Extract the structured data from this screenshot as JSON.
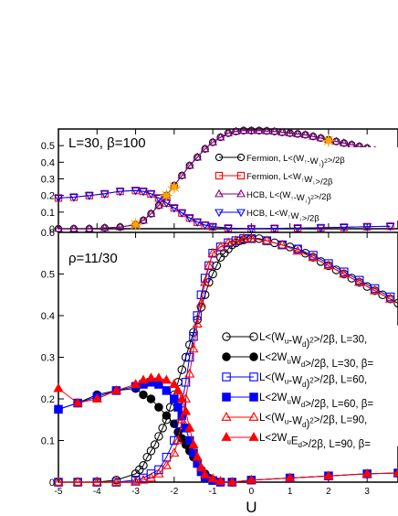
{
  "chart_data": [
    {
      "type": "line",
      "panel": "top",
      "annotation": "L=30, β=100",
      "xlim": [
        -5,
        3.8
      ],
      "ylim": [
        0,
        0.6
      ],
      "yticks": [
        "0",
        "0.1",
        "0.2",
        "0.3",
        "0.4",
        "0.5"
      ],
      "ytick_values": [
        0,
        0.1,
        0.2,
        0.3,
        0.4,
        0.5
      ],
      "grid": false,
      "legend_position": "top-right",
      "series": [
        {
          "name": "Fermion, L<(W↑-W↓)²>/2β",
          "color": "#000000",
          "marker": "circle",
          "filled": false,
          "x": [
            -5,
            -4.6,
            -4.2,
            -3.8,
            -3.4,
            -3.0,
            -2.8,
            -2.6,
            -2.4,
            -2.2,
            -2.0,
            -1.8,
            -1.6,
            -1.4,
            -1.2,
            -1.0,
            -0.8,
            -0.6,
            -0.4,
            -0.2,
            0.0,
            0.2,
            0.4,
            0.6,
            0.8,
            1.0,
            1.2,
            1.4,
            1.6,
            1.8,
            2.0,
            2.2,
            2.4,
            2.6,
            2.8,
            3.0,
            3.2,
            3.4,
            3.6,
            3.8
          ],
          "y": [
            0.0,
            0.0,
            0.0,
            0.005,
            0.01,
            0.025,
            0.05,
            0.09,
            0.14,
            0.2,
            0.26,
            0.32,
            0.38,
            0.43,
            0.48,
            0.52,
            0.55,
            0.575,
            0.585,
            0.59,
            0.59,
            0.59,
            0.588,
            0.585,
            0.58,
            0.575,
            0.57,
            0.565,
            0.555,
            0.545,
            0.535,
            0.525,
            0.515,
            0.505,
            0.495,
            0.485,
            0.47,
            0.46,
            0.45,
            0.44
          ]
        },
        {
          "name": "Fermion, L<W↑W↓>/2β",
          "color": "#ff0000",
          "marker": "square",
          "filled": false,
          "x": [
            -5,
            -4.6,
            -4.2,
            -3.8,
            -3.4,
            -3.0,
            -2.8,
            -2.6,
            -2.4,
            -2.2,
            -2.0,
            -1.8,
            -1.6,
            -1.4,
            -1.2,
            -1.0,
            -0.6,
            0.0,
            0.6,
            1.2,
            1.8,
            2.4,
            3.0,
            3.6
          ],
          "y": [
            0.185,
            0.19,
            0.2,
            0.21,
            0.225,
            0.23,
            0.225,
            0.21,
            0.185,
            0.155,
            0.125,
            0.095,
            0.065,
            0.04,
            0.022,
            0.012,
            0.004,
            0.0,
            0.002,
            0.004,
            0.006,
            0.009,
            0.012,
            0.015
          ]
        },
        {
          "name": "HCB, L<(W↑-W↓)²>/2β",
          "color": "#800080",
          "marker": "triangle-up",
          "filled": false,
          "x": [
            -5,
            -4.6,
            -4.2,
            -3.8,
            -3.4,
            -3.0,
            -2.8,
            -2.6,
            -2.4,
            -2.2,
            -2.0,
            -1.8,
            -1.6,
            -1.4,
            -1.2,
            -1.0,
            -0.8,
            -0.6,
            -0.4,
            -0.2,
            0.0,
            0.2,
            0.4,
            0.6,
            0.8,
            1.0,
            1.2,
            1.4,
            1.6,
            1.8,
            2.0,
            2.2,
            2.4,
            2.6,
            2.8,
            3.0,
            3.2,
            3.4,
            3.6,
            3.8
          ],
          "y": [
            0.0,
            0.0,
            0.0,
            0.005,
            0.01,
            0.025,
            0.05,
            0.09,
            0.14,
            0.2,
            0.26,
            0.32,
            0.38,
            0.43,
            0.48,
            0.52,
            0.55,
            0.575,
            0.585,
            0.59,
            0.59,
            0.59,
            0.588,
            0.585,
            0.58,
            0.575,
            0.57,
            0.565,
            0.555,
            0.545,
            0.535,
            0.525,
            0.515,
            0.505,
            0.495,
            0.485,
            0.47,
            0.46,
            0.45,
            0.44
          ]
        },
        {
          "name": "HCB, L<W↑W↓>/2β",
          "color": "#0000ff",
          "marker": "triangle-down",
          "filled": false,
          "x": [
            -5,
            -4.6,
            -4.2,
            -3.8,
            -3.4,
            -3.0,
            -2.8,
            -2.6,
            -2.4,
            -2.2,
            -2.0,
            -1.8,
            -1.6,
            -1.4,
            -1.2,
            -1.0,
            -0.6,
            0.0,
            0.6,
            1.2,
            1.8,
            2.4,
            3.0,
            3.6
          ],
          "y": [
            0.185,
            0.19,
            0.2,
            0.21,
            0.225,
            0.23,
            0.225,
            0.21,
            0.185,
            0.155,
            0.125,
            0.095,
            0.065,
            0.04,
            0.022,
            0.012,
            0.004,
            0.0,
            0.002,
            0.004,
            0.006,
            0.009,
            0.012,
            0.015
          ]
        }
      ],
      "highlight_points": {
        "color": "#ffa500",
        "x": [
          -3.0,
          -2.2,
          -2.0,
          2.0
        ],
        "y": [
          0.025,
          0.2,
          0.25,
          0.53
        ]
      }
    },
    {
      "type": "line",
      "panel": "bottom",
      "annotation": "ρ=11/30",
      "xlabel": "U",
      "xlim": [
        -5,
        3.8
      ],
      "ylim": [
        0,
        0.6
      ],
      "xticks": [
        "-5",
        "-4",
        "-3",
        "-2",
        "-1",
        "0",
        "1",
        "2",
        "3"
      ],
      "xtick_values": [
        -5,
        -4,
        -3,
        -2,
        -1,
        0,
        1,
        2,
        3
      ],
      "yticks": [
        "0",
        "0.1",
        "0.2",
        "0.3",
        "0.4",
        "0.5",
        "0.6"
      ],
      "ytick_values": [
        0,
        0.1,
        0.2,
        0.3,
        0.4,
        0.5,
        0.6
      ],
      "grid": false,
      "legend_position": "right",
      "series": [
        {
          "name": "L<(Wu-Wd)²>/2β, L=30,",
          "color": "#000000",
          "marker": "circle",
          "filled": false,
          "x": [
            -5,
            -4.5,
            -4,
            -3.5,
            -3.0,
            -2.9,
            -2.8,
            -2.7,
            -2.6,
            -2.5,
            -2.4,
            -2.3,
            -2.2,
            -2.1,
            -2.0,
            -1.9,
            -1.8,
            -1.7,
            -1.6,
            -1.5,
            -1.4,
            -1.3,
            -1.2,
            -1.1,
            -1.0,
            -0.9,
            -0.8,
            -0.7,
            -0.6,
            -0.5,
            -0.4,
            -0.3,
            -0.2,
            -0.1,
            0.0,
            0.2,
            0.4,
            0.6,
            0.8,
            1.0,
            1.2,
            1.4,
            1.6,
            1.8,
            2.0,
            2.2,
            2.4,
            2.6,
            2.8,
            3.0,
            3.2,
            3.4,
            3.6,
            3.8
          ],
          "y": [
            0.0,
            0.0,
            0.0,
            0.005,
            0.02,
            0.03,
            0.04,
            0.06,
            0.075,
            0.09,
            0.11,
            0.13,
            0.15,
            0.18,
            0.21,
            0.24,
            0.27,
            0.3,
            0.33,
            0.36,
            0.39,
            0.42,
            0.45,
            0.48,
            0.5,
            0.52,
            0.54,
            0.55,
            0.56,
            0.57,
            0.575,
            0.58,
            0.582,
            0.585,
            0.585,
            0.585,
            0.58,
            0.575,
            0.57,
            0.565,
            0.56,
            0.55,
            0.54,
            0.53,
            0.52,
            0.51,
            0.5,
            0.49,
            0.48,
            0.47,
            0.46,
            0.45,
            0.44,
            0.43
          ]
        },
        {
          "name": "L<2WuWd>/2β, L=30, β=",
          "color": "#000000",
          "marker": "circle",
          "filled": true,
          "x": [
            -5,
            -4.5,
            -4,
            -3.5,
            -3.0,
            -2.8,
            -2.6,
            -2.4,
            -2.2,
            -2.0,
            -1.9,
            -1.8,
            -1.7,
            -1.6,
            -1.5,
            -1.4,
            -1.3,
            -1.2,
            -1.1,
            -1.0,
            -0.8,
            -0.5,
            0.0,
            1.0,
            2.0,
            3.0,
            3.8
          ],
          "y": [
            0.175,
            0.19,
            0.21,
            0.22,
            0.225,
            0.21,
            0.2,
            0.18,
            0.16,
            0.14,
            0.12,
            0.105,
            0.09,
            0.075,
            0.06,
            0.045,
            0.03,
            0.02,
            0.01,
            0.005,
            0.0,
            0.0,
            0.005,
            0.01,
            0.015,
            0.02,
            0.022
          ]
        },
        {
          "name": "L<(Wu-Wd)²>/2β, L=60,",
          "color": "#0000ff",
          "marker": "square",
          "filled": false,
          "x": [
            -5,
            -4.5,
            -4,
            -3.5,
            -3.0,
            -2.8,
            -2.6,
            -2.4,
            -2.2,
            -2.0,
            -1.9,
            -1.8,
            -1.7,
            -1.6,
            -1.5,
            -1.4,
            -1.3,
            -1.2,
            -1.1,
            -1.0,
            -0.8,
            -0.6,
            -0.4,
            -0.2,
            0.0,
            0.4,
            0.8,
            1.2,
            1.6,
            2.0,
            2.4,
            2.8,
            3.2,
            3.6
          ],
          "y": [
            0.0,
            0.0,
            0.0,
            0.0,
            0.005,
            0.01,
            0.02,
            0.03,
            0.06,
            0.1,
            0.14,
            0.19,
            0.24,
            0.3,
            0.35,
            0.4,
            0.45,
            0.49,
            0.52,
            0.55,
            0.565,
            0.575,
            0.58,
            0.585,
            0.585,
            0.58,
            0.57,
            0.56,
            0.545,
            0.525,
            0.505,
            0.485,
            0.465,
            0.445
          ]
        },
        {
          "name": "L<2WuWd>/2β, L=60, β=",
          "color": "#0000ff",
          "marker": "square",
          "filled": true,
          "x": [
            -5,
            -4.5,
            -4,
            -3.5,
            -3.0,
            -2.8,
            -2.6,
            -2.4,
            -2.2,
            -2.0,
            -1.9,
            -1.8,
            -1.7,
            -1.6,
            -1.5,
            -1.4,
            -1.3,
            -1.2,
            -1.0,
            -0.8,
            -0.5,
            0.0,
            1.0,
            2.0,
            3.0,
            3.8
          ],
          "y": [
            0.175,
            0.19,
            0.205,
            0.22,
            0.23,
            0.235,
            0.24,
            0.235,
            0.22,
            0.2,
            0.18,
            0.16,
            0.13,
            0.1,
            0.07,
            0.045,
            0.025,
            0.012,
            0.004,
            0.0,
            0.0,
            0.005,
            0.01,
            0.015,
            0.02,
            0.022
          ]
        },
        {
          "name": "L<(Wu-Wd)²>/2β, L=90,",
          "color": "#ff0000",
          "marker": "triangle-up",
          "filled": false,
          "x": [
            -5,
            -4.5,
            -4,
            -3.5,
            -3.0,
            -2.8,
            -2.6,
            -2.4,
            -2.2,
            -2.0,
            -1.9,
            -1.8,
            -1.7,
            -1.6,
            -1.5,
            -1.4,
            -1.3,
            -1.2,
            -1.1,
            -1.0,
            -0.8,
            -0.6,
            -0.4,
            -0.2,
            0.0,
            0.4,
            0.8,
            1.2,
            1.6,
            2.0,
            2.4,
            2.8,
            3.2,
            3.6
          ],
          "y": [
            0.0,
            0.0,
            0.0,
            0.0,
            0.0,
            0.005,
            0.01,
            0.02,
            0.04,
            0.07,
            0.1,
            0.15,
            0.2,
            0.26,
            0.32,
            0.38,
            0.43,
            0.48,
            0.52,
            0.55,
            0.565,
            0.575,
            0.58,
            0.585,
            0.585,
            0.58,
            0.57,
            0.555,
            0.54,
            0.52,
            0.5,
            0.48,
            0.46,
            0.44
          ]
        },
        {
          "name": "L<2WuEd>/2β, L=90, β=",
          "color": "#ff0000",
          "marker": "triangle-up",
          "filled": true,
          "x": [
            -5,
            -4.5,
            -4,
            -3.5,
            -3.0,
            -2.8,
            -2.6,
            -2.4,
            -2.2,
            -2.0,
            -1.9,
            -1.8,
            -1.7,
            -1.6,
            -1.5,
            -1.4,
            -1.3,
            -1.2,
            -1.0,
            -0.8,
            -0.5,
            0.0,
            1.0,
            2.0,
            3.0,
            3.8
          ],
          "y": [
            0.225,
            0.19,
            0.2,
            0.22,
            0.235,
            0.245,
            0.25,
            0.25,
            0.245,
            0.235,
            0.22,
            0.2,
            0.17,
            0.13,
            0.09,
            0.06,
            0.035,
            0.018,
            0.008,
            0.002,
            0.0,
            0.005,
            0.01,
            0.015,
            0.02,
            0.022
          ]
        }
      ]
    }
  ]
}
